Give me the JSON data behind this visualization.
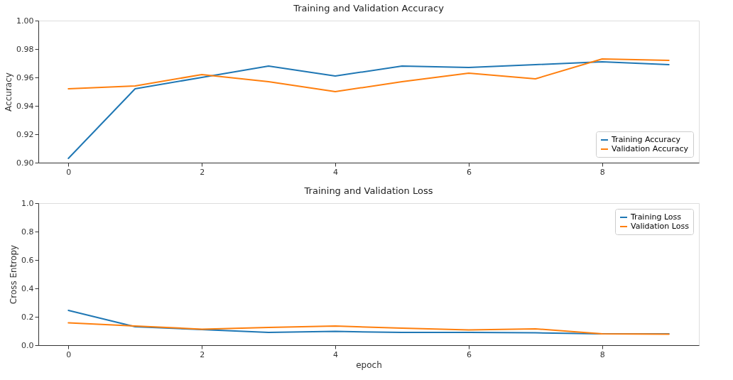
{
  "chart_data": [
    {
      "type": "line",
      "title": "Training and Validation Accuracy",
      "ylabel": "Accuracy",
      "x": [
        0,
        1,
        2,
        3,
        4,
        5,
        6,
        7,
        8,
        9
      ],
      "xlim": [
        -0.45,
        9.45
      ],
      "xticks": [
        0,
        2,
        4,
        6,
        8
      ],
      "ylim": [
        0.9,
        1.0
      ],
      "yticks": [
        {
          "value": 0.9,
          "label": "0.90"
        },
        0.92,
        0.94,
        0.96,
        0.98,
        {
          "value": 1,
          "label": "1.00"
        }
      ],
      "grid": false,
      "legend": "bottom right",
      "line_style": "solid",
      "marker": "none",
      "series": [
        {
          "name": "Training Accuracy",
          "color": "#1f77b4",
          "values": [
            0.903,
            0.952,
            0.96,
            0.968,
            0.961,
            0.968,
            0.967,
            0.969,
            0.971,
            0.969
          ]
        },
        {
          "name": "Validation Accuracy",
          "color": "#ff7f0e",
          "values": [
            0.952,
            0.954,
            0.962,
            0.957,
            0.95,
            0.957,
            0.963,
            0.959,
            0.973,
            0.972
          ]
        }
      ]
    },
    {
      "type": "line",
      "title": "Training and Validation Loss",
      "xlabel": "epoch",
      "ylabel": "Cross Entropy",
      "x": [
        0,
        1,
        2,
        3,
        4,
        5,
        6,
        7,
        8,
        9
      ],
      "xlim": [
        -0.45,
        9.45
      ],
      "xticks": [
        0,
        2,
        4,
        6,
        8
      ],
      "ylim": [
        0.0,
        1.0
      ],
      "yticks": [
        {
          "value": 0,
          "label": "0.0"
        },
        0.2,
        0.4,
        0.6,
        0.8,
        {
          "value": 1,
          "label": "1.0"
        }
      ],
      "grid": false,
      "legend": "top right",
      "line_style": "solid",
      "marker": "none",
      "series": [
        {
          "name": "Training Loss",
          "color": "#1f77b4",
          "values": [
            0.245,
            0.13,
            0.11,
            0.09,
            0.097,
            0.09,
            0.09,
            0.087,
            0.08,
            0.08
          ]
        },
        {
          "name": "Validation Loss",
          "color": "#ff7f0e",
          "values": [
            0.158,
            0.135,
            0.113,
            0.125,
            0.135,
            0.12,
            0.107,
            0.115,
            0.08,
            0.078
          ]
        }
      ]
    }
  ]
}
